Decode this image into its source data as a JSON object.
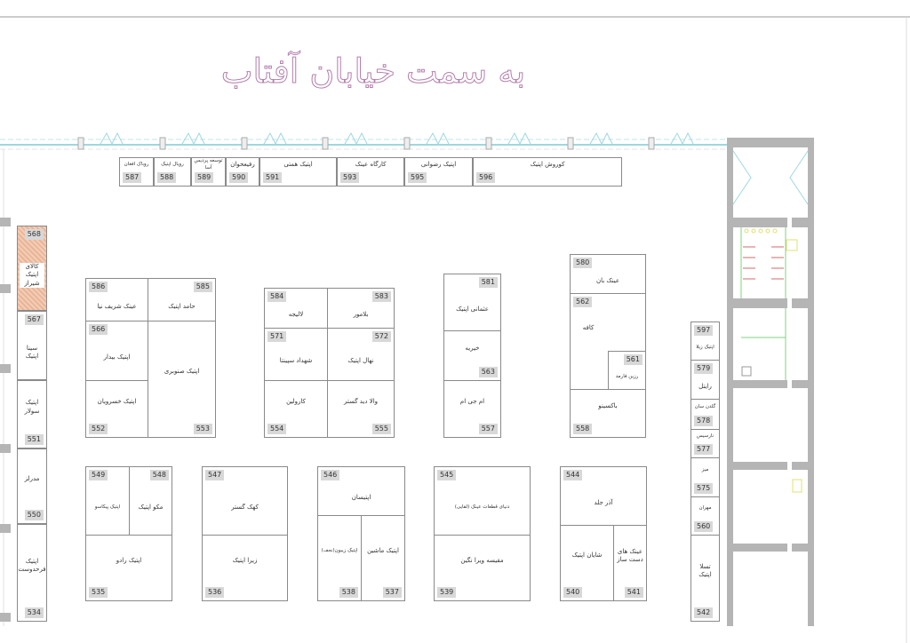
{
  "title": "به سمت خیابان آفتاب",
  "colors": {
    "title": "#b57fae",
    "wall": "#b5b5b5",
    "window": "#9ed8e0",
    "highlight_booth": "#f3cdb6"
  },
  "booths": [
    {
      "number": "587",
      "name": "روباک افغان"
    },
    {
      "number": "588",
      "name": "رویال اپتیک"
    },
    {
      "number": "589",
      "name": "توسعه پردیس آسا"
    },
    {
      "number": "590",
      "name": "رفیعخوان"
    },
    {
      "number": "591",
      "name": "اپتیک همتی"
    },
    {
      "number": "593",
      "name": "کارگاه عینک"
    },
    {
      "number": "595",
      "name": "اپتیک رضوانی"
    },
    {
      "number": "596",
      "name": "کوروش اپتیک"
    },
    {
      "number": "568",
      "name": "کالای اپتیک شیراز"
    },
    {
      "number": "567",
      "name": "سینا اپتیک"
    },
    {
      "number": "551",
      "name": "اپتیک سولار"
    },
    {
      "number": "550",
      "name": "مدرلز"
    },
    {
      "number": "534",
      "name": "اپتیک فرحدوست"
    },
    {
      "number": "586",
      "name": "عینک شریف نیا"
    },
    {
      "number": "585",
      "name": "حامد اپتیک"
    },
    {
      "number": "566",
      "name": "اپتیک بیدار"
    },
    {
      "number": "552",
      "name": "اپتیک خسرویان"
    },
    {
      "number": "553",
      "name": "اپتیک صنوبری"
    },
    {
      "number": "584",
      "name": "لالیجه"
    },
    {
      "number": "583",
      "name": "بلامور"
    },
    {
      "number": "571",
      "name": "شهداد سپینتا"
    },
    {
      "number": "572",
      "name": "نهال اپتیک"
    },
    {
      "number": "554",
      "name": "کارولین"
    },
    {
      "number": "555",
      "name": "والا دید گستر"
    },
    {
      "number": "581",
      "name": "عثمانی اپتیک"
    },
    {
      "number": "563",
      "name": "خیریه"
    },
    {
      "number": "557",
      "name": "ام جی ام"
    },
    {
      "number": "580",
      "name": "عینک بان"
    },
    {
      "number": "562",
      "name": "کافه"
    },
    {
      "number": "561",
      "name": "رزین فارمد"
    },
    {
      "number": "558",
      "name": "باکسینو"
    },
    {
      "number": "597",
      "name": "اپتیک زیلا"
    },
    {
      "number": "579",
      "name": "رایتل"
    },
    {
      "number": "578",
      "name": "گلدن سان"
    },
    {
      "number": "577",
      "name": "نارسیس"
    },
    {
      "number": "575",
      "name": "میز"
    },
    {
      "number": "560",
      "name": "مهران"
    },
    {
      "number": "542",
      "name": "تسلا اپتیک"
    },
    {
      "number": "549",
      "name": "اپتیک پیکاسو"
    },
    {
      "number": "548",
      "name": "مکو اپتیک"
    },
    {
      "number": "535",
      "name": "اپتیک رادو"
    },
    {
      "number": "547",
      "name": "کهک گستر"
    },
    {
      "number": "536",
      "name": "زیرا اپتیک"
    },
    {
      "number": "546",
      "name": "اپتیسان"
    },
    {
      "number": "538",
      "name": "اپتیک زیبون(نجف)"
    },
    {
      "number": "537",
      "name": "اپتیک ماشین"
    },
    {
      "number": "545",
      "name": "دنیای قطعات عینک (لقایی)"
    },
    {
      "number": "539",
      "name": "مقیسه ویرا نگین"
    },
    {
      "number": "544",
      "name": "آذر جلد"
    },
    {
      "number": "540",
      "name": "شایان اپتیک"
    },
    {
      "number": "541",
      "name": "عینک های دست ساز"
    }
  ]
}
